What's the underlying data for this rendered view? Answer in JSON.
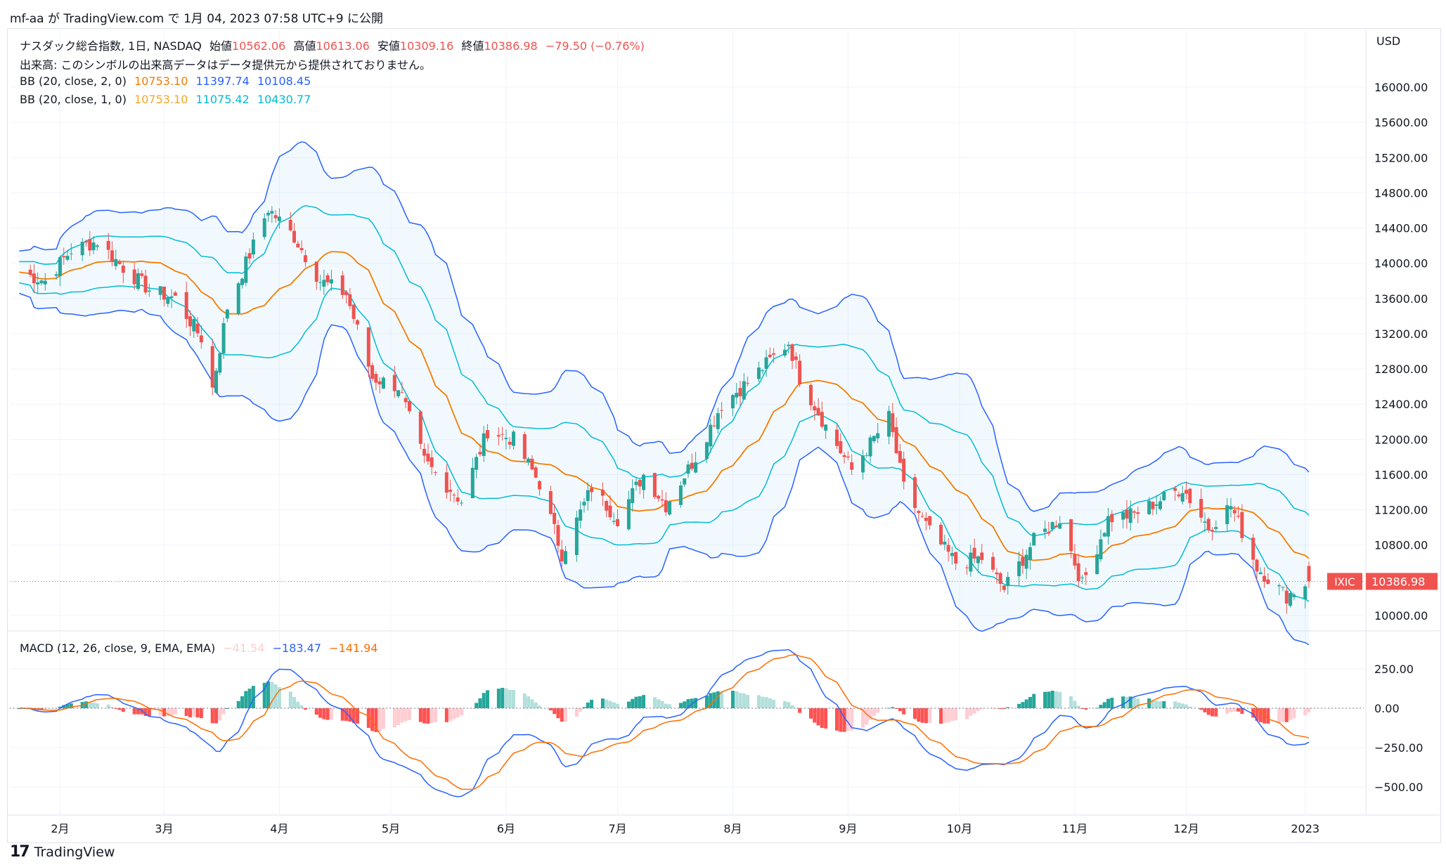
{
  "header": {
    "text": "mf-aa が TradingView.com で 1月 04, 2023 07:58 UTC+9 に公開"
  },
  "legend": {
    "title": "ナスダック総合指数, 1日, NASDAQ",
    "open_label": "始値",
    "open": "10562.06",
    "high_label": "高値",
    "high": "10613.06",
    "low_label": "安値",
    "low": "10309.16",
    "close_label": "終値",
    "close": "10386.98",
    "change": "−79.50 (−0.76%)",
    "volume_note": "出来高: このシンボルの出来高データはデータ提供元から提供されておりません。",
    "bb2_label": "BB (20, close, 2, 0)",
    "bb2_basis": "10753.10",
    "bb2_upper": "11397.74",
    "bb2_lower": "10108.45",
    "bb1_label": "BB (20, close, 1, 0)",
    "bb1_basis": "10753.10",
    "bb1_upper": "11075.42",
    "bb1_lower": "10430.77",
    "macd_label": "MACD (12, 26, close, 9, EMA, EMA)",
    "macd_hist": "−41.54",
    "macd_line": "−183.47",
    "macd_signal": "−141.94"
  },
  "axis": {
    "currency": "USD",
    "price_ticks": [
      "16000.00",
      "15600.00",
      "15200.00",
      "14800.00",
      "14400.00",
      "14000.00",
      "13600.00",
      "13200.00",
      "12800.00",
      "12400.00",
      "12000.00",
      "11600.00",
      "11200.00",
      "10800.00",
      "10000.00"
    ],
    "macd_ticks": [
      "250.00",
      "0.00",
      "−250.00",
      "−500.00"
    ],
    "months": [
      "2月",
      "3月",
      "4月",
      "5月",
      "6月",
      "7月",
      "8月",
      "9月",
      "10月",
      "11月",
      "12月",
      "2023"
    ]
  },
  "price_tag": {
    "symbol": "IXIC",
    "value": "10386.98"
  },
  "colors": {
    "up": "#26a69a",
    "down": "#ef5350",
    "bb2": "#2962ff",
    "bb1": "#00bcd4",
    "basis": "#f57c00",
    "macd": "#2962ff",
    "signal": "#ff6d00",
    "hist_up": "#26a69a",
    "hist_up_weak": "#b2dfdb",
    "hist_down": "#ff5252",
    "hist_down_weak": "#ffcdd2"
  },
  "footer": {
    "brand": "TradingView"
  },
  "chart_data": {
    "type": "candlestick",
    "title": "ナスダック総合指数, 1日, NASDAQ",
    "x_range": [
      "2022-01-20",
      "2023-01-03"
    ],
    "price_ylim": [
      10000,
      16000
    ],
    "macd_ylim": [
      -500,
      250
    ],
    "anchors": [
      {
        "date": "2022-01-21",
        "close": 13900
      },
      {
        "date": "2022-01-28",
        "close": 13800
      },
      {
        "date": "2022-02-04",
        "close": 14150
      },
      {
        "date": "2022-02-11",
        "close": 14250
      },
      {
        "date": "2022-02-18",
        "close": 13950
      },
      {
        "date": "2022-02-25",
        "close": 13700
      },
      {
        "date": "2022-03-04",
        "close": 13600
      },
      {
        "date": "2022-03-11",
        "close": 13150
      },
      {
        "date": "2022-03-14",
        "close": 12580
      },
      {
        "date": "2022-03-18",
        "close": 13500
      },
      {
        "date": "2022-03-25",
        "close": 14200
      },
      {
        "date": "2022-03-29",
        "close": 14620
      },
      {
        "date": "2022-04-05",
        "close": 14300
      },
      {
        "date": "2022-04-12",
        "close": 13800
      },
      {
        "date": "2022-04-19",
        "close": 13650
      },
      {
        "date": "2022-04-26",
        "close": 12700
      },
      {
        "date": "2022-05-03",
        "close": 12600
      },
      {
        "date": "2022-05-10",
        "close": 11750
      },
      {
        "date": "2022-05-20",
        "close": 11300
      },
      {
        "date": "2022-05-27",
        "close": 12100
      },
      {
        "date": "2022-06-03",
        "close": 12000
      },
      {
        "date": "2022-06-10",
        "close": 11500
      },
      {
        "date": "2022-06-16",
        "close": 10700
      },
      {
        "date": "2022-06-24",
        "close": 11450
      },
      {
        "date": "2022-07-01",
        "close": 11100
      },
      {
        "date": "2022-07-08",
        "close": 11600
      },
      {
        "date": "2022-07-14",
        "close": 11250
      },
      {
        "date": "2022-07-22",
        "close": 11800
      },
      {
        "date": "2022-07-29",
        "close": 12400
      },
      {
        "date": "2022-08-05",
        "close": 12650
      },
      {
        "date": "2022-08-16",
        "close": 13100
      },
      {
        "date": "2022-08-19",
        "close": 12700
      },
      {
        "date": "2022-08-26",
        "close": 12150
      },
      {
        "date": "2022-09-02",
        "close": 11650
      },
      {
        "date": "2022-09-12",
        "close": 12250
      },
      {
        "date": "2022-09-16",
        "close": 11450
      },
      {
        "date": "2022-09-23",
        "close": 10950
      },
      {
        "date": "2022-09-30",
        "close": 10600
      },
      {
        "date": "2022-10-07",
        "close": 10650
      },
      {
        "date": "2022-10-13",
        "close": 10300
      },
      {
        "date": "2022-10-21",
        "close": 10850
      },
      {
        "date": "2022-10-28",
        "close": 11100
      },
      {
        "date": "2022-11-03",
        "close": 10350
      },
      {
        "date": "2022-11-10",
        "close": 11100
      },
      {
        "date": "2022-11-17",
        "close": 11150
      },
      {
        "date": "2022-11-30",
        "close": 11450
      },
      {
        "date": "2022-12-07",
        "close": 11000
      },
      {
        "date": "2022-12-13",
        "close": 11250
      },
      {
        "date": "2022-12-20",
        "close": 10550
      },
      {
        "date": "2022-12-28",
        "close": 10220
      },
      {
        "date": "2023-01-03",
        "close": 10386.98
      }
    ],
    "last_candle": {
      "date": "2023-01-03",
      "open": 10562.06,
      "high": 10613.06,
      "low": 10309.16,
      "close": 10386.98
    }
  }
}
